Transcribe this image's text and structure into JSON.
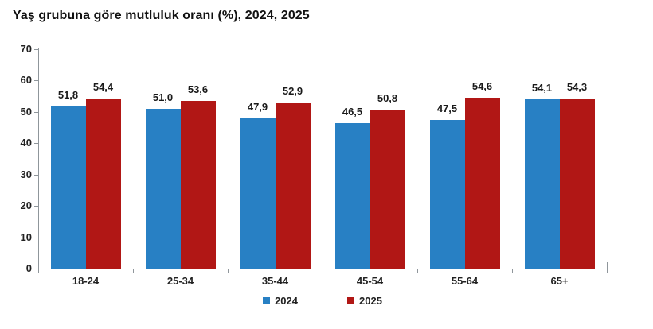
{
  "chart_data": {
    "type": "bar",
    "title": "Yaş grubuna göre mutluluk oranı (%), 2024, 2025",
    "categories": [
      "18-24",
      "25-34",
      "35-44",
      "45-54",
      "55-64",
      "65+"
    ],
    "series": [
      {
        "name": "2024",
        "color": "#2880C4",
        "values": [
          51.8,
          51.0,
          47.9,
          46.5,
          47.5,
          54.1
        ],
        "labels": [
          "51,8",
          "51,0",
          "47,9",
          "46,5",
          "47,5",
          "54,1"
        ]
      },
      {
        "name": "2025",
        "color": "#B11715",
        "values": [
          54.4,
          53.6,
          52.9,
          50.8,
          54.6,
          54.3
        ],
        "labels": [
          "54,4",
          "53,6",
          "52,9",
          "50,8",
          "54,6",
          "54,3"
        ]
      }
    ],
    "ylim": [
      0,
      70
    ],
    "yticks": [
      0,
      10,
      20,
      30,
      40,
      50,
      60,
      70
    ],
    "grid": false,
    "legend_position": "bottom",
    "decimal_separator": ","
  }
}
